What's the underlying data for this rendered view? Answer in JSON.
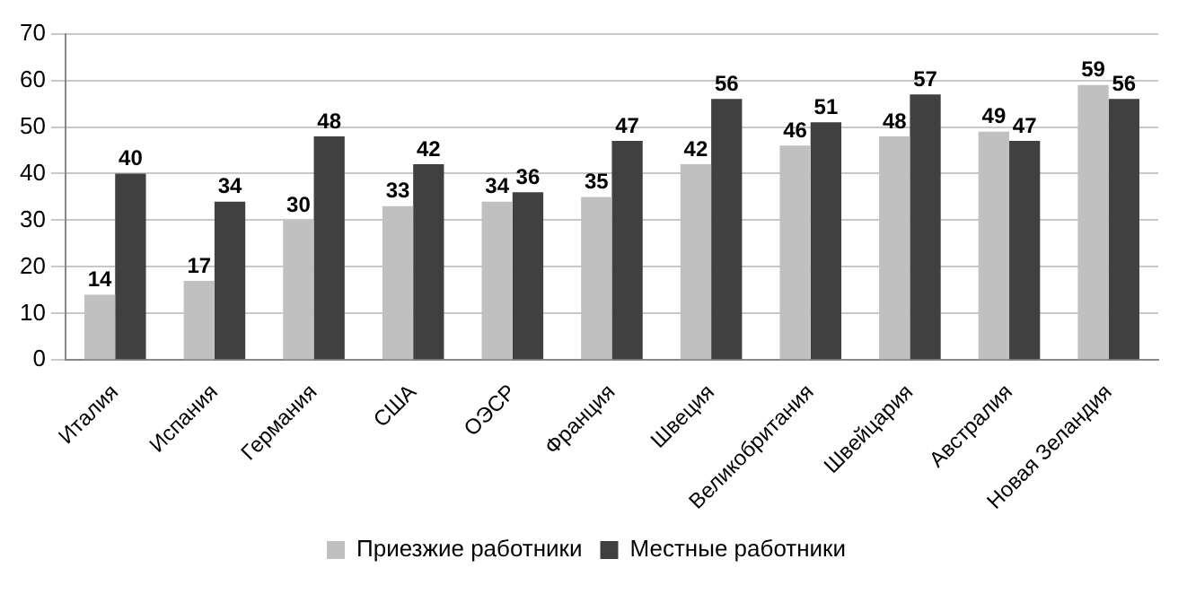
{
  "chart_data": {
    "type": "bar",
    "categories": [
      "Италия",
      "Испания",
      "Германия",
      "США",
      "ОЭСР",
      "Франция",
      "Швеция",
      "Великобритания",
      "Швейцария",
      "Австралия",
      "Новая Зеландия"
    ],
    "series": [
      {
        "name": "Приезжие работники",
        "color": "#c0c0c0",
        "values": [
          14,
          17,
          30,
          33,
          34,
          35,
          42,
          46,
          48,
          49,
          59
        ]
      },
      {
        "name": "Местные работники",
        "color": "#404040",
        "values": [
          40,
          34,
          48,
          42,
          36,
          47,
          56,
          51,
          57,
          47,
          56
        ]
      }
    ],
    "ylim": [
      0,
      70
    ],
    "yticks": [
      0,
      10,
      20,
      30,
      40,
      50,
      60,
      70
    ],
    "grid": "y",
    "legend": "bottom",
    "data_labels": true
  }
}
